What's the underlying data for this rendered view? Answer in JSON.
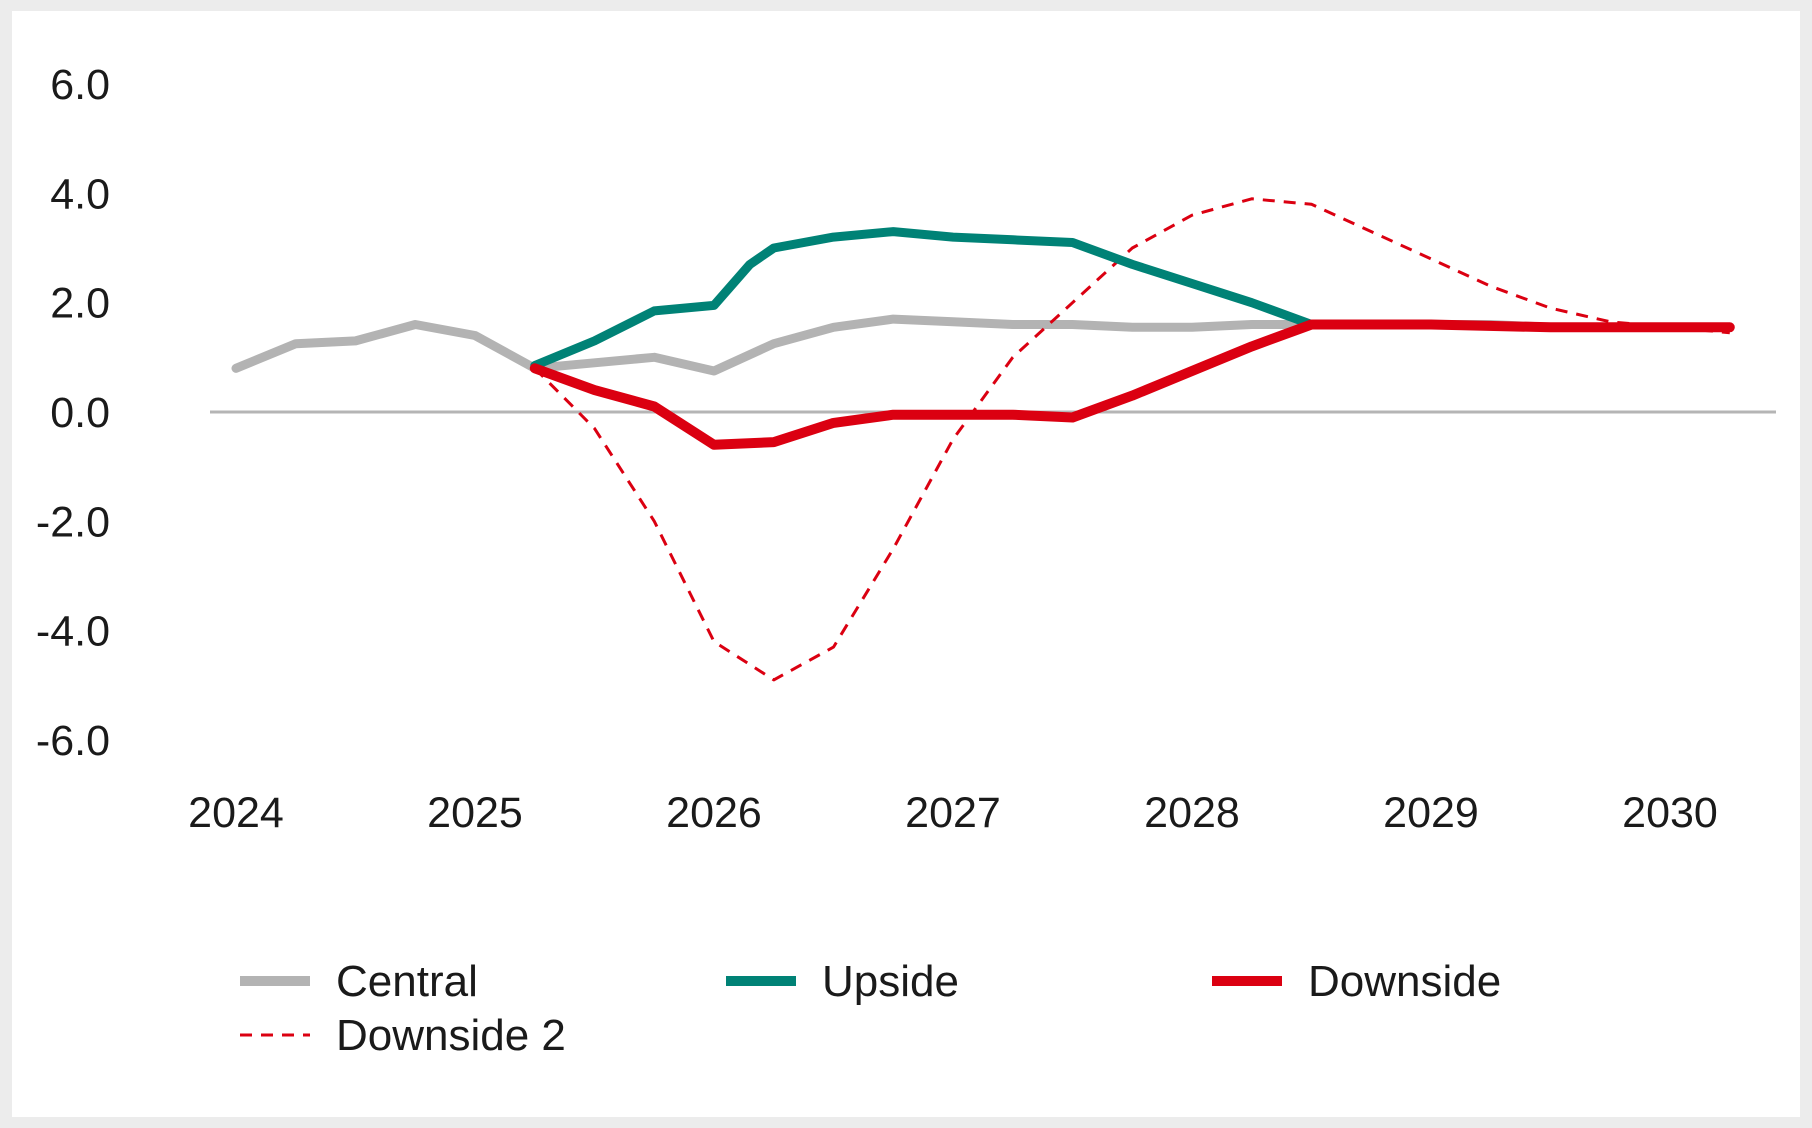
{
  "chart_data": {
    "type": "line",
    "title": "",
    "xlabel": "",
    "ylabel": "",
    "ylim": [
      -6.0,
      6.0
    ],
    "y_ticks": [
      "6.0",
      "4.0",
      "2.0",
      "0.0",
      "-2.0",
      "-4.0",
      "-6.0"
    ],
    "x_ticks": [
      "2024",
      "2025",
      "2026",
      "2027",
      "2028",
      "2029",
      "2030"
    ],
    "grid": false,
    "zero_line": true,
    "legend_position": "bottom",
    "series": [
      {
        "name": "Central",
        "color": "#b3b3b3",
        "style": "solid",
        "points": [
          [
            2024.0,
            0.8
          ],
          [
            2024.25,
            1.25
          ],
          [
            2024.5,
            1.3
          ],
          [
            2024.75,
            1.6
          ],
          [
            2025.0,
            1.4
          ],
          [
            2025.25,
            0.8
          ],
          [
            2025.5,
            0.9
          ],
          [
            2025.75,
            1.0
          ],
          [
            2026.0,
            0.75
          ],
          [
            2026.25,
            1.25
          ],
          [
            2026.5,
            1.55
          ],
          [
            2026.75,
            1.7
          ],
          [
            2027.0,
            1.65
          ],
          [
            2027.25,
            1.6
          ],
          [
            2027.5,
            1.6
          ],
          [
            2027.75,
            1.55
          ],
          [
            2028.0,
            1.55
          ],
          [
            2028.25,
            1.6
          ],
          [
            2028.5,
            1.6
          ],
          [
            2028.75,
            1.6
          ],
          [
            2029.0,
            1.6
          ],
          [
            2029.25,
            1.6
          ],
          [
            2029.5,
            1.55
          ],
          [
            2029.75,
            1.55
          ],
          [
            2030.0,
            1.55
          ],
          [
            2030.25,
            1.55
          ]
        ]
      },
      {
        "name": "Upside",
        "color": "#008276",
        "style": "solid",
        "points": [
          [
            2025.25,
            0.85
          ],
          [
            2025.5,
            1.3
          ],
          [
            2025.75,
            1.85
          ],
          [
            2026.0,
            1.95
          ],
          [
            2026.15,
            2.7
          ],
          [
            2026.25,
            3.0
          ],
          [
            2026.5,
            3.2
          ],
          [
            2026.75,
            3.3
          ],
          [
            2027.0,
            3.2
          ],
          [
            2027.25,
            3.15
          ],
          [
            2027.5,
            3.1
          ],
          [
            2027.75,
            2.7
          ],
          [
            2028.0,
            2.35
          ],
          [
            2028.25,
            2.0
          ],
          [
            2028.5,
            1.6
          ],
          [
            2028.75,
            1.6
          ],
          [
            2029.0,
            1.6
          ],
          [
            2029.5,
            1.55
          ],
          [
            2030.0,
            1.55
          ],
          [
            2030.25,
            1.55
          ]
        ]
      },
      {
        "name": "Downside",
        "color": "#db0011",
        "style": "solid",
        "points": [
          [
            2025.25,
            0.8
          ],
          [
            2025.5,
            0.4
          ],
          [
            2025.75,
            0.1
          ],
          [
            2026.0,
            -0.6
          ],
          [
            2026.25,
            -0.55
          ],
          [
            2026.5,
            -0.2
          ],
          [
            2026.75,
            -0.05
          ],
          [
            2027.0,
            -0.05
          ],
          [
            2027.25,
            -0.05
          ],
          [
            2027.5,
            -0.1
          ],
          [
            2027.75,
            0.3
          ],
          [
            2028.0,
            0.75
          ],
          [
            2028.25,
            1.2
          ],
          [
            2028.5,
            1.6
          ],
          [
            2028.75,
            1.6
          ],
          [
            2029.0,
            1.6
          ],
          [
            2029.5,
            1.55
          ],
          [
            2030.0,
            1.55
          ],
          [
            2030.25,
            1.55
          ]
        ]
      },
      {
        "name": "Downside 2",
        "color": "#db0011",
        "style": "dashed",
        "points": [
          [
            2025.25,
            0.8
          ],
          [
            2025.5,
            -0.3
          ],
          [
            2025.75,
            -2.0
          ],
          [
            2026.0,
            -4.2
          ],
          [
            2026.25,
            -4.9
          ],
          [
            2026.5,
            -4.3
          ],
          [
            2026.75,
            -2.5
          ],
          [
            2027.0,
            -0.5
          ],
          [
            2027.25,
            1.0
          ],
          [
            2027.5,
            2.0
          ],
          [
            2027.75,
            3.0
          ],
          [
            2028.0,
            3.6
          ],
          [
            2028.25,
            3.9
          ],
          [
            2028.5,
            3.8
          ],
          [
            2028.75,
            3.3
          ],
          [
            2029.0,
            2.8
          ],
          [
            2029.25,
            2.3
          ],
          [
            2029.5,
            1.9
          ],
          [
            2029.75,
            1.65
          ],
          [
            2030.0,
            1.55
          ],
          [
            2030.25,
            1.45
          ]
        ]
      }
    ]
  }
}
